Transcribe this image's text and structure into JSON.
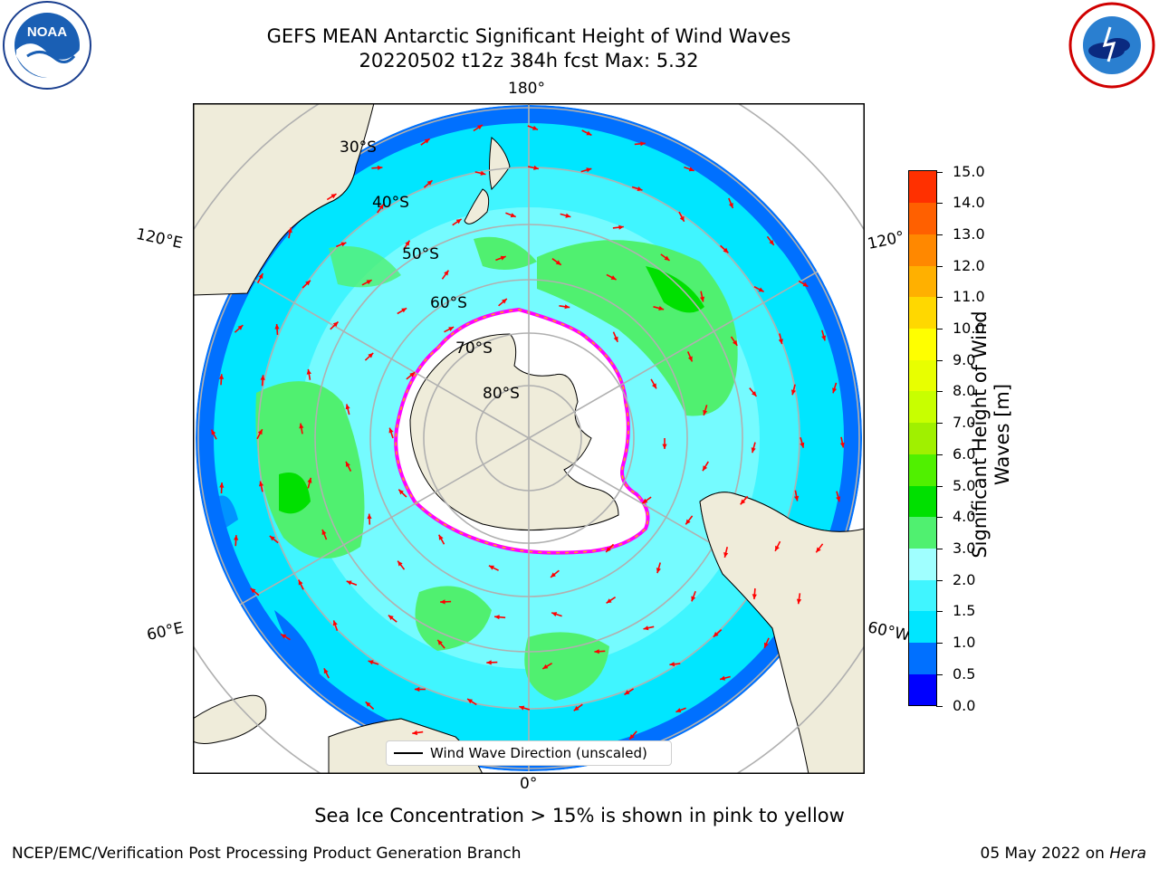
{
  "header": {
    "title_line1": "GEFS MEAN Antarctic Significant Height of Wind Waves",
    "title_line2": "20220502 t12z 384h fcst   Max: 5.32"
  },
  "logos": {
    "noaa": {
      "text": "NOAA",
      "ring_text": "NATIONAL OCEANIC AND ATMOSPHERIC ADMINISTRATION · U.S. DEPARTMENT OF COMMERCE"
    },
    "nws": {
      "ring_text": "NATIONAL WEATHER SERVICE"
    }
  },
  "map": {
    "projection": "south-polar-stereographic",
    "lon_labels": {
      "top": "180°",
      "bottom": "0°",
      "upper_left": "120°E",
      "upper_right": "120°",
      "lower_left": "60°E",
      "lower_right": "60°W"
    },
    "lat_labels": [
      "30°S",
      "40°S",
      "50°S",
      "60°S",
      "70°S",
      "80°S"
    ],
    "legend_label": "Wind Wave Direction (unscaled)",
    "arrow_color": "#ff0000",
    "ice_edge_colors": [
      "#ff00ff",
      "#ffb000",
      "#ffff00"
    ],
    "land_color": "#efecda"
  },
  "colorbar": {
    "label": "Significant Height of Wind Waves [m]",
    "ticks": [
      "0.0",
      "0.5",
      "1.0",
      "1.5",
      "2.0",
      "3.0",
      "4.0",
      "5.0",
      "6.0",
      "7.0",
      "8.0",
      "9.0",
      "10.0",
      "11.0",
      "12.0",
      "13.0",
      "14.0",
      "15.0"
    ],
    "colors": [
      "#0000ff",
      "#0070ff",
      "#00e6ff",
      "#40f5ff",
      "#a0ffff",
      "#50f070",
      "#00e000",
      "#50f000",
      "#a0f000",
      "#c8ff00",
      "#e8ff00",
      "#ffff00",
      "#ffd800",
      "#ffb000",
      "#ff8800",
      "#ff6000",
      "#ff3000"
    ]
  },
  "chart_data": {
    "type": "heatmap",
    "variable": "Significant Height of Wind Waves",
    "units": "m",
    "max": 5.32,
    "color_range": [
      0.0,
      15.0
    ]
  },
  "subtitle": "Sea Ice Concentration > 15% is shown in pink to yellow",
  "footer": {
    "left": "NCEP/EMC/Verification Post Processing Product Generation Branch",
    "right_date": "05 May 2022 on",
    "right_host": "Hera"
  }
}
